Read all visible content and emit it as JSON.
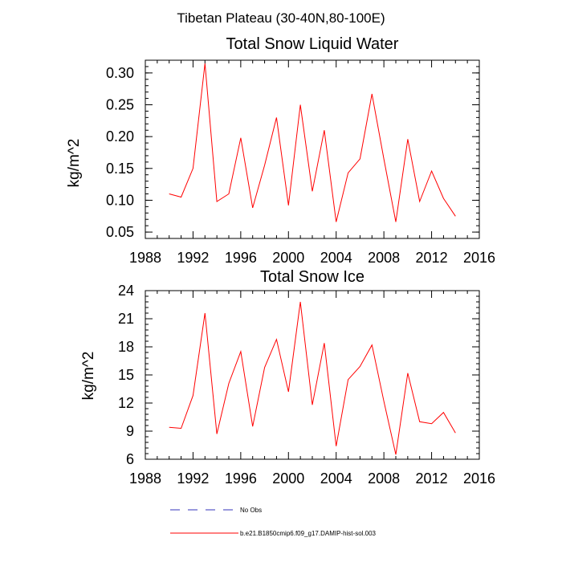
{
  "figure": {
    "suptitle": "Tibetan Plateau (30-40N,80-100E)"
  },
  "legend": [
    {
      "label": "No Obs",
      "color": "#3333bb",
      "dash": "dashed"
    },
    {
      "label": "b.e21.B1850cmip6.f09_g17.DAMIP-hist-sol.003",
      "color": "#ff0000",
      "dash": "solid"
    }
  ],
  "chart_data": [
    {
      "type": "line",
      "title": "Total Snow Liquid Water",
      "xlabel": "",
      "ylabel": "kg/m^2",
      "xlim": [
        1988,
        2016
      ],
      "ylim": [
        0.04,
        0.32
      ],
      "xticks": [
        1988,
        1992,
        1996,
        2000,
        2004,
        2008,
        2012,
        2016
      ],
      "yticks": [
        0.05,
        0.1,
        0.15,
        0.2,
        0.25,
        0.3
      ],
      "ytick_labels": [
        "0.05",
        "0.10",
        "0.15",
        "0.20",
        "0.25",
        "0.30"
      ],
      "grid": false,
      "series": [
        {
          "name": "b.e21.B1850cmip6.f09_g17.DAMIP-hist-sol.003",
          "color": "#ff0000",
          "x": [
            1990,
            1991,
            1992,
            1993,
            1994,
            1995,
            1996,
            1997,
            1998,
            1999,
            2000,
            2001,
            2002,
            2003,
            2004,
            2005,
            2006,
            2007,
            2008,
            2009,
            2010,
            2011,
            2012,
            2013,
            2014
          ],
          "y": [
            0.11,
            0.105,
            0.15,
            0.315,
            0.098,
            0.11,
            0.198,
            0.088,
            0.155,
            0.23,
            0.092,
            0.25,
            0.114,
            0.21,
            0.066,
            0.143,
            0.165,
            0.267,
            0.165,
            0.066,
            0.196,
            0.098,
            0.146,
            0.103,
            0.075
          ]
        }
      ]
    },
    {
      "type": "line",
      "title": "Total Snow Ice",
      "xlabel": "",
      "ylabel": "kg/m^2",
      "xlim": [
        1988,
        2016
      ],
      "ylim": [
        6,
        24
      ],
      "xticks": [
        1988,
        1992,
        1996,
        2000,
        2004,
        2008,
        2012,
        2016
      ],
      "yticks": [
        6,
        9,
        12,
        15,
        18,
        21,
        24
      ],
      "ytick_labels": [
        "6",
        "9",
        "12",
        "15",
        "18",
        "21",
        "24"
      ],
      "grid": false,
      "series": [
        {
          "name": "b.e21.B1850cmip6.f09_g17.DAMIP-hist-sol.003",
          "color": "#ff0000",
          "x": [
            1990,
            1991,
            1992,
            1993,
            1994,
            1995,
            1996,
            1997,
            1998,
            1999,
            2000,
            2001,
            2002,
            2003,
            2004,
            2005,
            2006,
            2007,
            2008,
            2009,
            2010,
            2011,
            2012,
            2013,
            2014
          ],
          "y": [
            9.4,
            9.3,
            12.8,
            21.6,
            8.7,
            14.1,
            17.5,
            9.5,
            15.8,
            18.8,
            13.2,
            22.8,
            11.8,
            18.4,
            7.4,
            14.5,
            15.9,
            18.2,
            12.2,
            6.5,
            15.2,
            10.0,
            9.8,
            11.0,
            8.8
          ]
        }
      ]
    }
  ]
}
